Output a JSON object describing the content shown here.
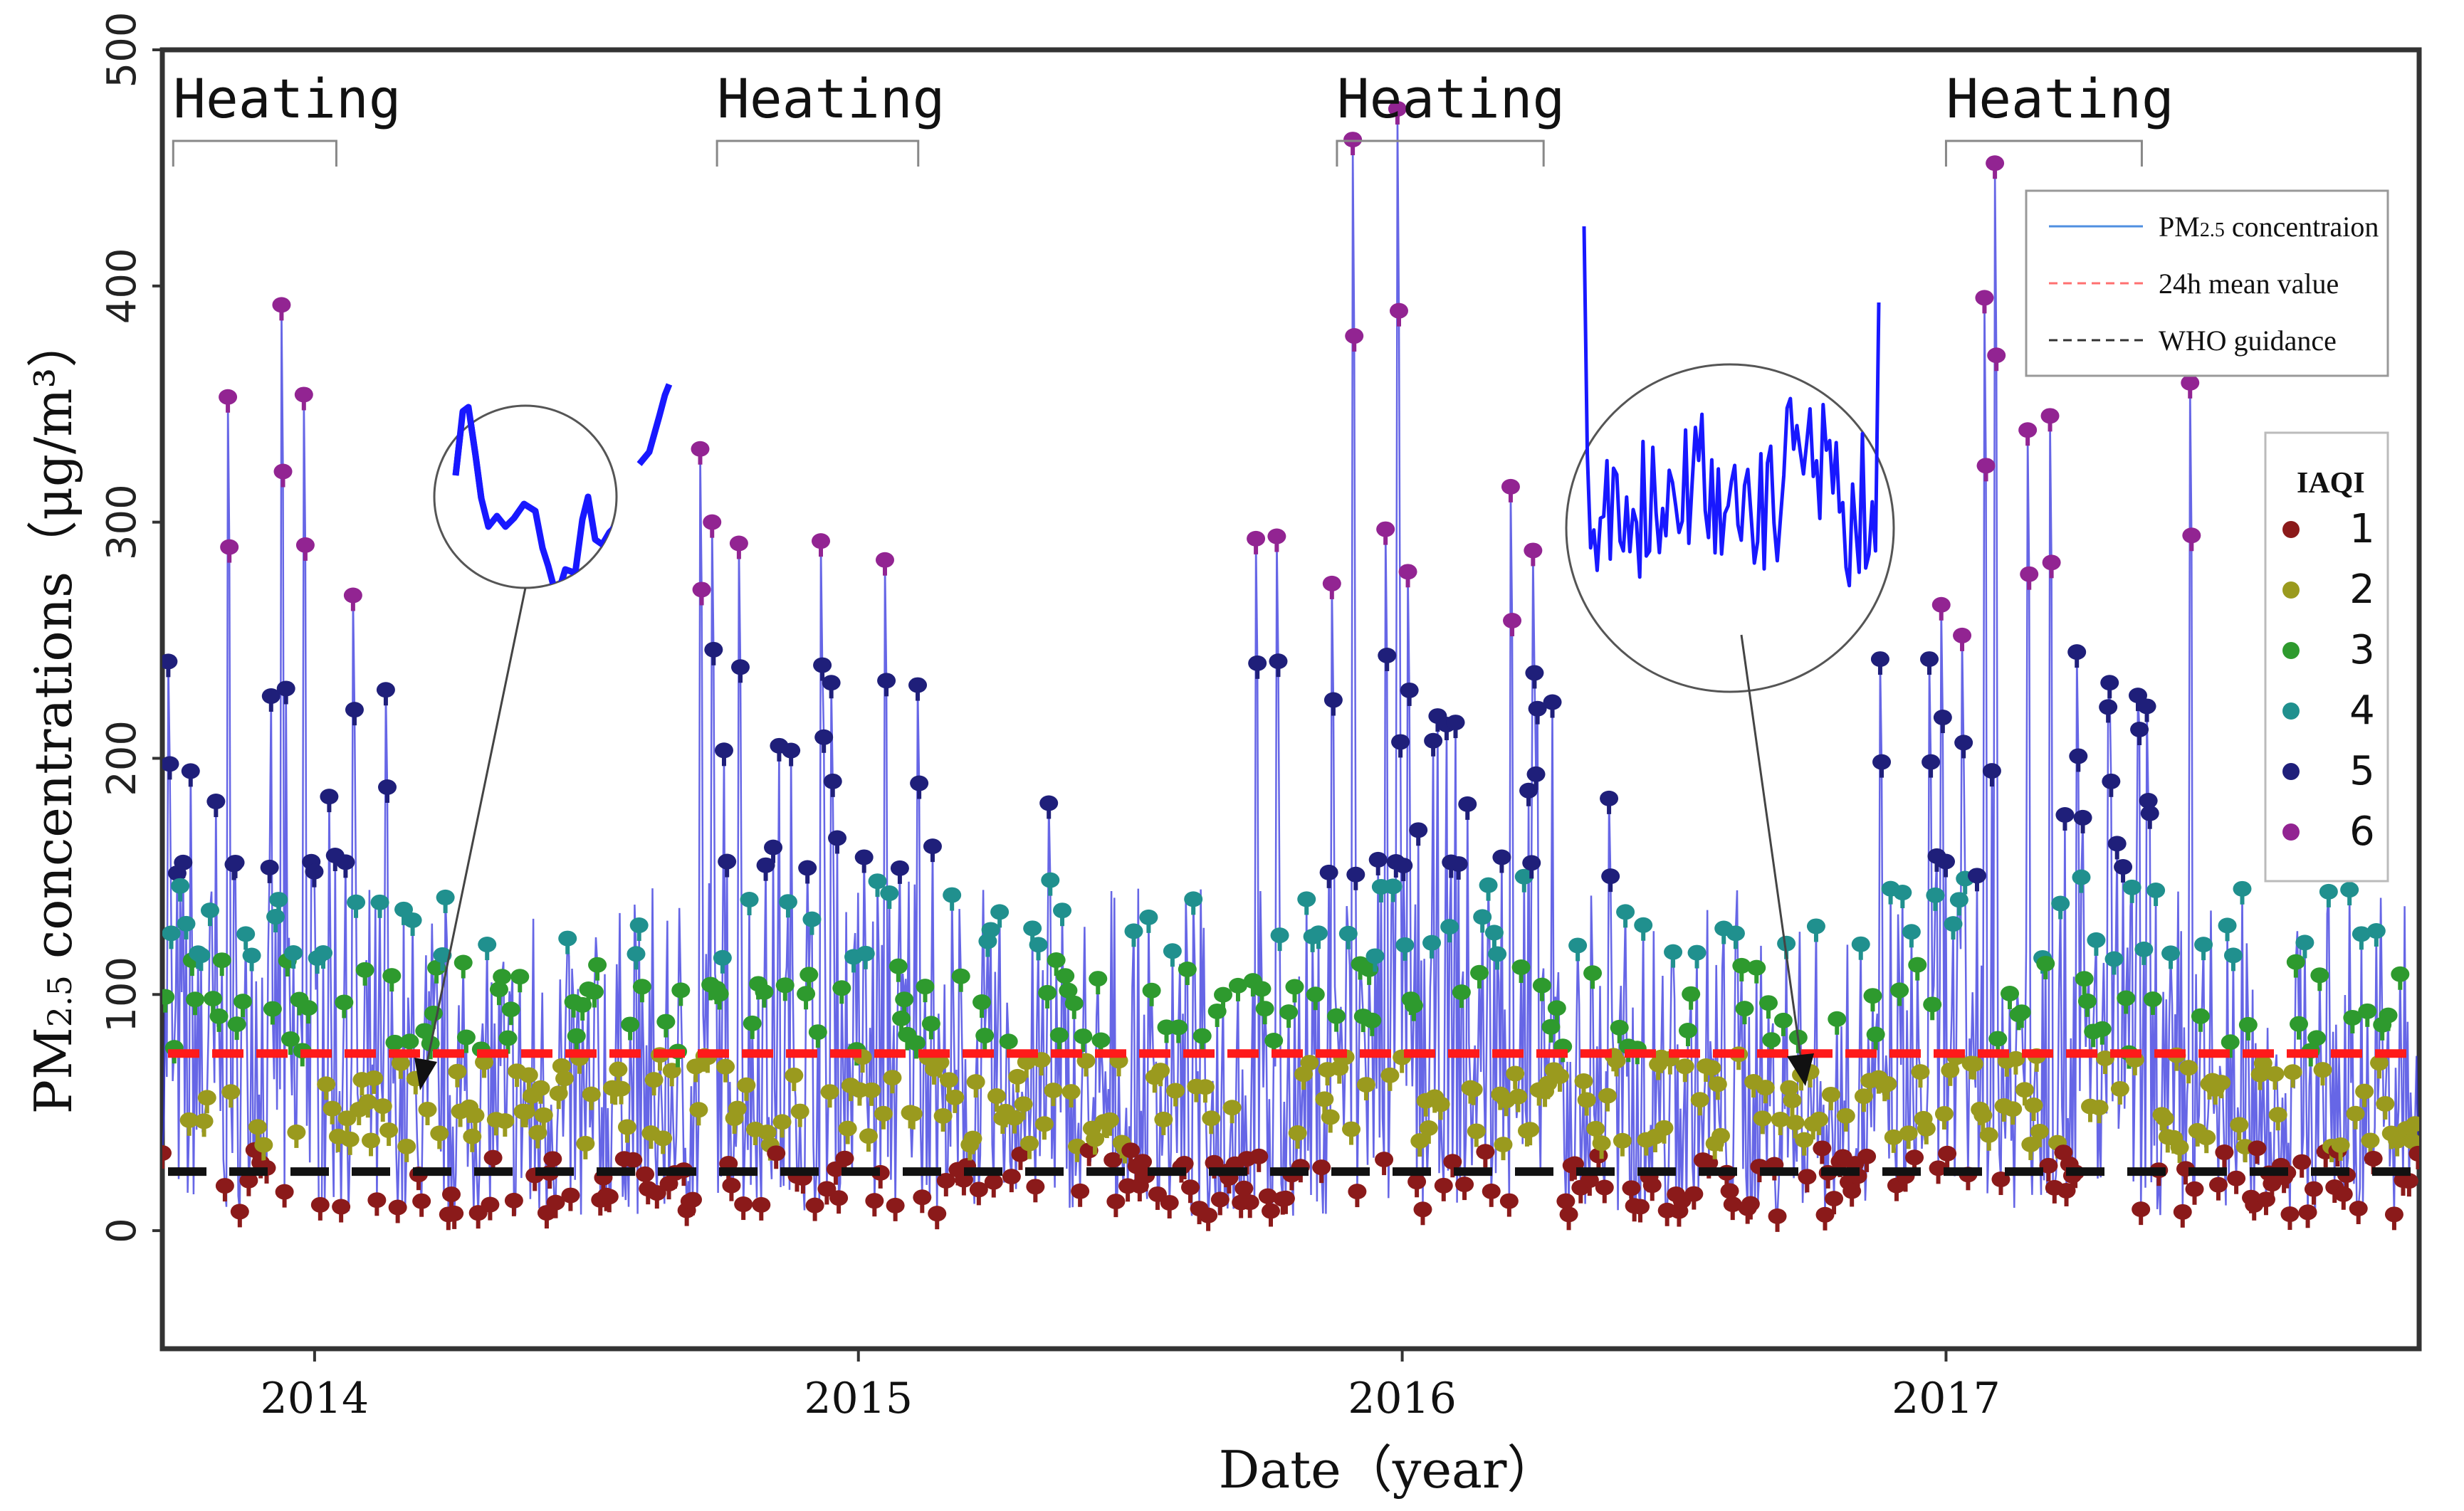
{
  "chart_data": {
    "type": "line",
    "title": "",
    "xlabel": "Date（year）",
    "ylabel_main": "PM",
    "ylabel_sub": "2.5",
    "ylabel_rest": " concentrations（μg/m³）",
    "x_range": [
      2013.72,
      2017.87
    ],
    "ylim": [
      -50,
      500
    ],
    "y_ticks": [
      "0",
      "100",
      "200",
      "300",
      "400",
      "500"
    ],
    "x_ticks": [
      {
        "label": "2014",
        "value": 2014
      },
      {
        "label": "2015",
        "value": 2015
      },
      {
        "label": "2016",
        "value": 2016
      },
      {
        "label": "2017",
        "value": 2017
      }
    ],
    "reference_lines": [
      {
        "name": "24h mean value",
        "value": 75,
        "color": "#ff1a1a"
      },
      {
        "name": "WHO guidance",
        "value": 25,
        "color": "#111111"
      }
    ],
    "periods": [
      {
        "label": "Heating",
        "start": 2013.74,
        "end": 2014.04
      },
      {
        "label": "Heating",
        "start": 2014.74,
        "end": 2015.11
      },
      {
        "label": "Heating",
        "start": 2015.88,
        "end": 2016.26
      },
      {
        "label": "Heating",
        "start": 2017.0,
        "end": 2017.36
      }
    ],
    "legend": [
      {
        "label_main": "PM",
        "label_sub": "2.5",
        "label_rest": " concentraion",
        "style": "solid",
        "color": "#4f8fe0"
      },
      {
        "label_main": "24h mean value",
        "style": "dashed",
        "color": "#ff7070"
      },
      {
        "label_main": "WHO guidance",
        "style": "dashed",
        "color": "#333333"
      }
    ],
    "iaqi_legend": {
      "title": "IAQI",
      "categories": [
        {
          "label": "1",
          "color": "#8b1a1a",
          "range": [
            0,
            35
          ]
        },
        {
          "label": "2",
          "color": "#9a9a1e",
          "range": [
            35,
            75
          ]
        },
        {
          "label": "3",
          "color": "#2e9a2e",
          "range": [
            75,
            115
          ]
        },
        {
          "label": "4",
          "color": "#20908e",
          "range": [
            115,
            150
          ]
        },
        {
          "label": "5",
          "color": "#1f1f7a",
          "range": [
            150,
            250
          ]
        },
        {
          "label": "6",
          "color": "#922492",
          "range": [
            250,
            500
          ]
        }
      ]
    },
    "line_color": "#3333dd",
    "peaks": [
      {
        "x": 2013.73,
        "y": 241
      },
      {
        "x": 2013.84,
        "y": 353
      },
      {
        "x": 2013.94,
        "y": 392
      },
      {
        "x": 2013.98,
        "y": 354
      },
      {
        "x": 2014.07,
        "y": 269
      },
      {
        "x": 2014.13,
        "y": 229
      },
      {
        "x": 2014.71,
        "y": 331
      },
      {
        "x": 2014.73,
        "y": 300
      },
      {
        "x": 2014.78,
        "y": 291
      },
      {
        "x": 2014.93,
        "y": 292
      },
      {
        "x": 2014.95,
        "y": 232
      },
      {
        "x": 2015.05,
        "y": 284
      },
      {
        "x": 2015.11,
        "y": 231
      },
      {
        "x": 2015.35,
        "y": 181
      },
      {
        "x": 2015.73,
        "y": 293
      },
      {
        "x": 2015.77,
        "y": 294
      },
      {
        "x": 2015.87,
        "y": 274
      },
      {
        "x": 2015.91,
        "y": 462
      },
      {
        "x": 2015.97,
        "y": 297
      },
      {
        "x": 2015.99,
        "y": 475
      },
      {
        "x": 2016.01,
        "y": 279
      },
      {
        "x": 2016.2,
        "y": 315
      },
      {
        "x": 2016.24,
        "y": 288
      },
      {
        "x": 2016.38,
        "y": 183
      },
      {
        "x": 2016.88,
        "y": 242
      },
      {
        "x": 2016.97,
        "y": 242
      },
      {
        "x": 2016.99,
        "y": 265
      },
      {
        "x": 2017.03,
        "y": 252
      },
      {
        "x": 2017.07,
        "y": 395
      },
      {
        "x": 2017.09,
        "y": 452
      },
      {
        "x": 2017.15,
        "y": 339
      },
      {
        "x": 2017.19,
        "y": 345
      },
      {
        "x": 2017.24,
        "y": 245
      },
      {
        "x": 2017.3,
        "y": 232
      },
      {
        "x": 2017.37,
        "y": 222
      },
      {
        "x": 2017.45,
        "y": 359
      }
    ],
    "insets": [
      {
        "name": "inset-2014",
        "target": {
          "x": 2014.2,
          "y": 82
        }
      },
      {
        "name": "inset-2016",
        "target": {
          "x": 2016.73,
          "y": 82
        }
      }
    ]
  }
}
